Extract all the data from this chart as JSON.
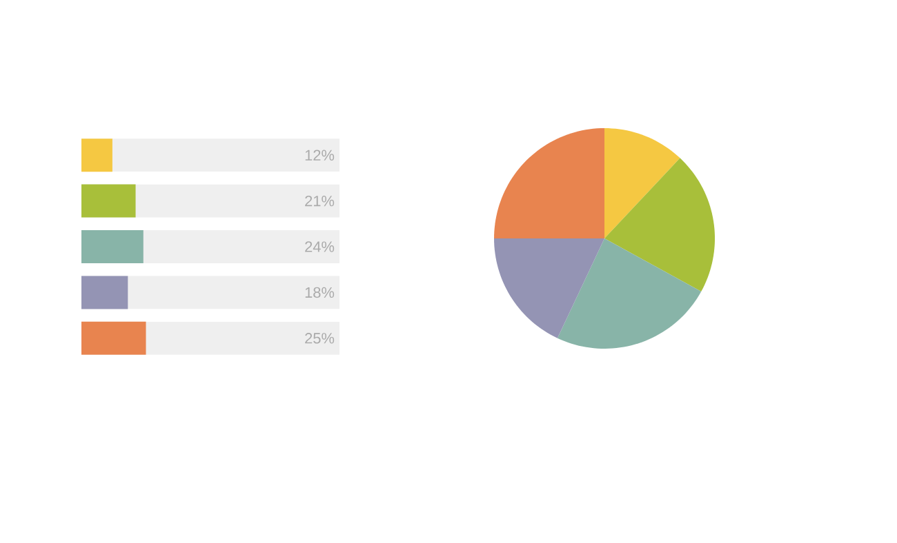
{
  "chart_data": [
    {
      "type": "bar",
      "orientation": "horizontal",
      "categories": [
        null,
        null,
        null,
        null,
        null
      ],
      "values": [
        12,
        21,
        24,
        18,
        25
      ],
      "colors": [
        "#f5c842",
        "#a8bf3a",
        "#88b4a8",
        "#9494b4",
        "#e8844f"
      ],
      "value_labels": [
        "12%",
        "21%",
        "24%",
        "18%",
        "25%"
      ],
      "xlim": [
        0,
        100
      ],
      "tick_labels": false,
      "bands": [
        {
          "axis": "x",
          "from": 0,
          "to": 100,
          "color": "#efefef"
        }
      ]
    },
    {
      "type": "pie",
      "categories": [
        null,
        null,
        null,
        null,
        null
      ],
      "values": [
        12,
        21,
        24,
        18,
        25
      ],
      "colors": [
        "#f5c842",
        "#a8bf3a",
        "#88b4a8",
        "#9494b4",
        "#e8844f"
      ]
    }
  ]
}
